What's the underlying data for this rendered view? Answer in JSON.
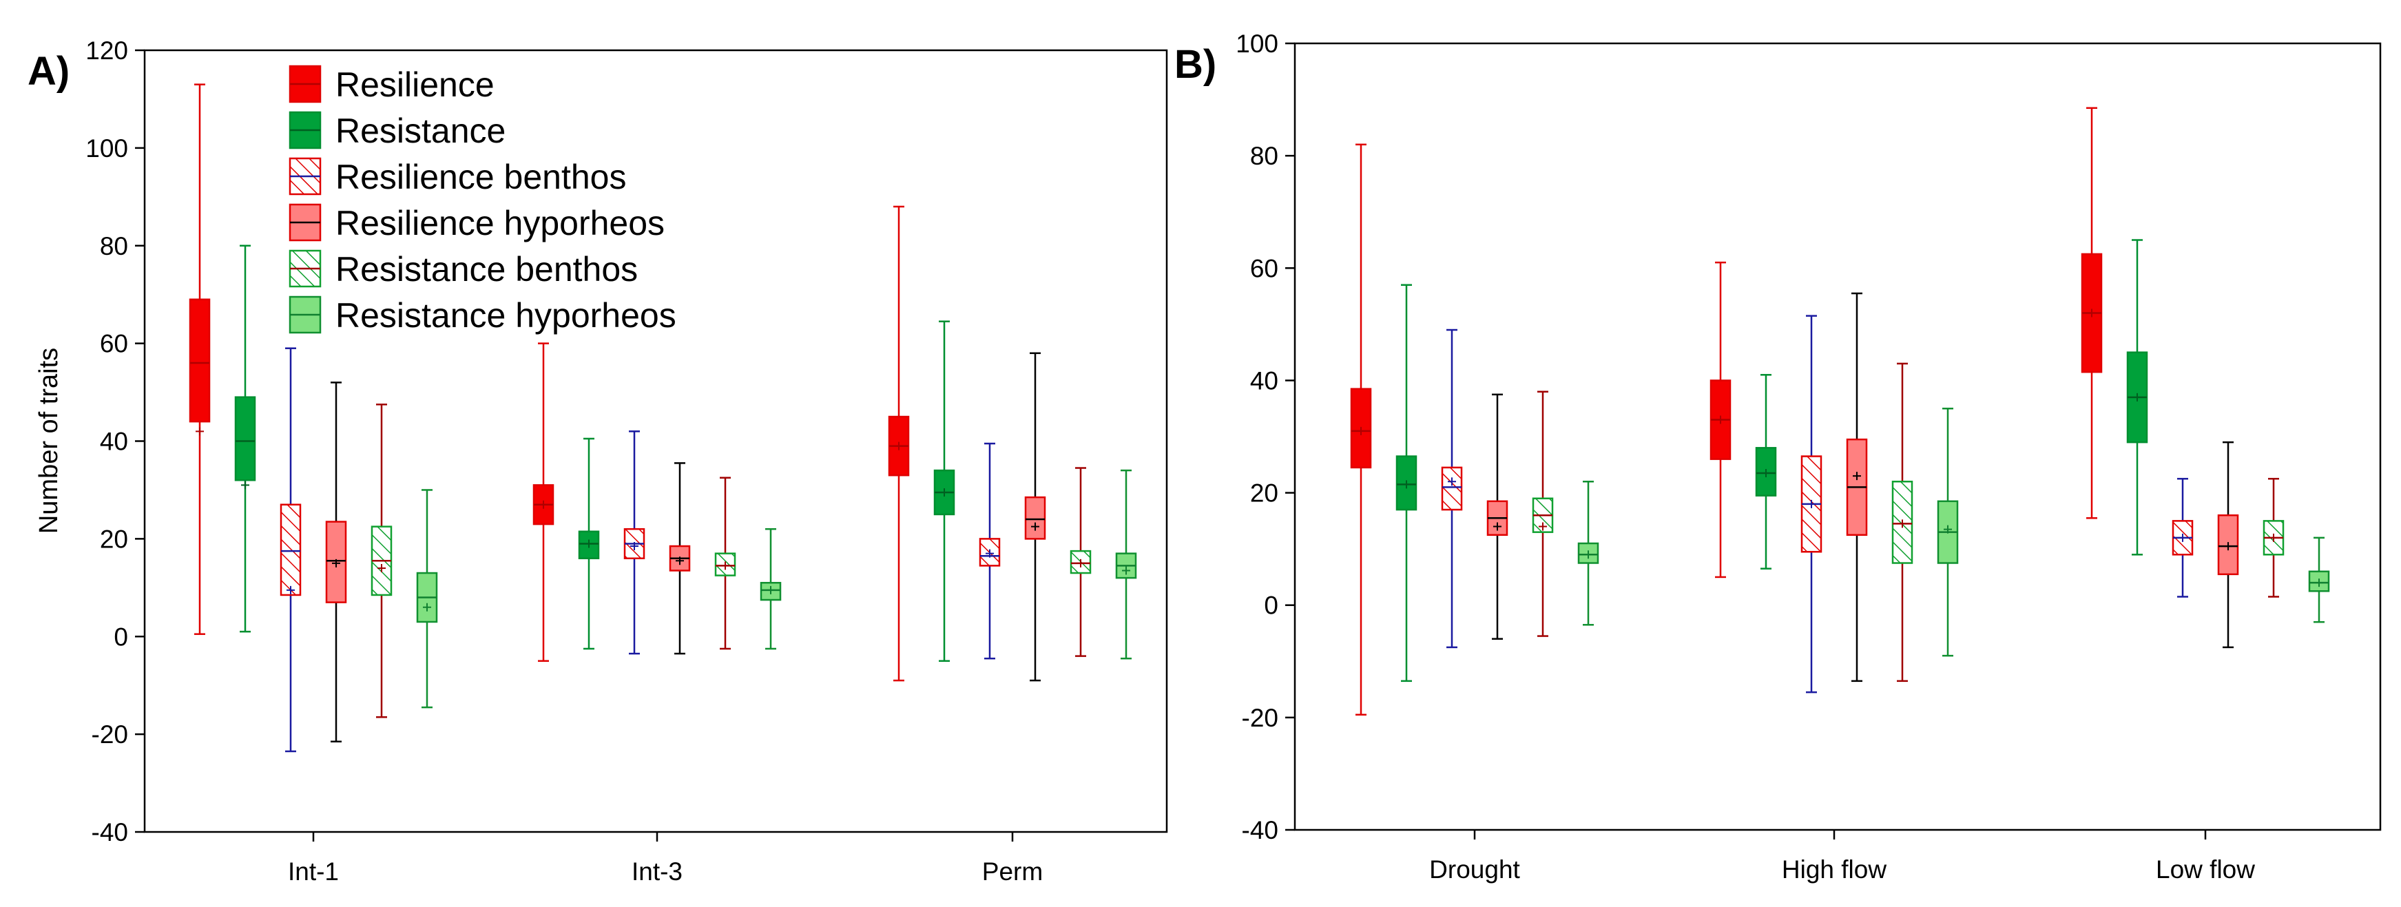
{
  "series_styles": {
    "Resilience": {
      "fill": "#f40000",
      "stroke": "#e00000",
      "whisker": "#e00000",
      "pattern": "solid",
      "median": "#b00000"
    },
    "Resistance": {
      "fill": "#00a13a",
      "stroke": "#008f30",
      "whisker": "#008f30",
      "pattern": "solid",
      "median": "#006020"
    },
    "Resilience benthos": {
      "fill": "#ffffff",
      "stroke": "#e00000",
      "whisker": "#1a1aa0",
      "pattern": "hatch-red",
      "median": "#1a1aa0"
    },
    "Resilience hyporheos": {
      "fill": "#ff8080",
      "stroke": "#e00000",
      "whisker": "#000000",
      "pattern": "solid",
      "median": "#000000"
    },
    "Resistance benthos": {
      "fill": "#ffffff",
      "stroke": "#10a030",
      "whisker": "#a00000",
      "pattern": "hatch-green",
      "median": "#a00000"
    },
    "Resistance hyporheos": {
      "fill": "#80e080",
      "stroke": "#109030",
      "whisker": "#109030",
      "pattern": "solid",
      "median": "#108030"
    }
  },
  "chart_data": [
    {
      "panel": "A)",
      "type": "boxplot",
      "ylabel": "Number of traits",
      "xlabel": "",
      "ylim": [
        -40,
        120
      ],
      "yticks": [
        -40,
        -20,
        0,
        20,
        40,
        60,
        80,
        100,
        120
      ],
      "legend": {
        "placement": "top-left",
        "entries": [
          "Resilience",
          "Resistance",
          "Resilience benthos",
          "Resilience hyporheos",
          "Resistance benthos",
          "Resistance hyporheos"
        ]
      },
      "categories": [
        "Int-1",
        "Int-3",
        "Perm"
      ],
      "series": [
        {
          "name": "Resilience",
          "boxes": [
            {
              "whisker_low": 0.5,
              "q1": 44,
              "median": 56,
              "q3": 69,
              "whisker_high": 113,
              "mean": 42
            },
            {
              "whisker_low": -5,
              "q1": 23,
              "median": 27,
              "q3": 31,
              "whisker_high": 60,
              "mean": 27
            },
            {
              "whisker_low": -9,
              "q1": 33,
              "median": 39,
              "q3": 45,
              "whisker_high": 88,
              "mean": 39
            }
          ]
        },
        {
          "name": "Resistance",
          "boxes": [
            {
              "whisker_low": 1,
              "q1": 32,
              "median": 40,
              "q3": 49,
              "whisker_high": 80,
              "mean": 31
            },
            {
              "whisker_low": -2.5,
              "q1": 16,
              "median": 19,
              "q3": 21.5,
              "whisker_high": 40.5,
              "mean": 19
            },
            {
              "whisker_low": -5,
              "q1": 25,
              "median": 29.5,
              "q3": 34,
              "whisker_high": 64.5,
              "mean": 29.5
            }
          ]
        },
        {
          "name": "Resilience benthos",
          "boxes": [
            {
              "whisker_low": -23.5,
              "q1": 8.5,
              "median": 17.5,
              "q3": 27,
              "whisker_high": 59,
              "mean": 9.5
            },
            {
              "whisker_low": -3.5,
              "q1": 16,
              "median": 19,
              "q3": 22,
              "whisker_high": 42,
              "mean": 18.5
            },
            {
              "whisker_low": -4.5,
              "q1": 14.5,
              "median": 16.5,
              "q3": 20,
              "whisker_high": 39.5,
              "mean": 17
            }
          ]
        },
        {
          "name": "Resilience hyporheos",
          "boxes": [
            {
              "whisker_low": -21.5,
              "q1": 7,
              "median": 15.5,
              "q3": 23.5,
              "whisker_high": 52,
              "mean": 15
            },
            {
              "whisker_low": -3.5,
              "q1": 13.5,
              "median": 16,
              "q3": 18.5,
              "whisker_high": 35.5,
              "mean": 15.5
            },
            {
              "whisker_low": -9,
              "q1": 20,
              "median": 24,
              "q3": 28.5,
              "whisker_high": 58,
              "mean": 22.5
            }
          ]
        },
        {
          "name": "Resistance benthos",
          "boxes": [
            {
              "whisker_low": -16.5,
              "q1": 8.5,
              "median": 15.5,
              "q3": 22.5,
              "whisker_high": 47.5,
              "mean": 14
            },
            {
              "whisker_low": -2.5,
              "q1": 12.5,
              "median": 14.5,
              "q3": 17,
              "whisker_high": 32.5,
              "mean": 14.5
            },
            {
              "whisker_low": -4,
              "q1": 13,
              "median": 15,
              "q3": 17.5,
              "whisker_high": 34.5,
              "mean": 15
            }
          ]
        },
        {
          "name": "Resistance hyporheos",
          "boxes": [
            {
              "whisker_low": -14.5,
              "q1": 3,
              "median": 8,
              "q3": 13,
              "whisker_high": 30,
              "mean": 6
            },
            {
              "whisker_low": -2.5,
              "q1": 7.5,
              "median": 9.5,
              "q3": 11,
              "whisker_high": 22,
              "mean": 9.5
            },
            {
              "whisker_low": -4.5,
              "q1": 12,
              "median": 14.5,
              "q3": 17,
              "whisker_high": 34,
              "mean": 13.5
            }
          ]
        }
      ]
    },
    {
      "panel": "B)",
      "type": "boxplot",
      "ylabel": "",
      "xlabel": "",
      "ylim": [
        -40,
        100
      ],
      "yticks": [
        -40,
        -20,
        0,
        20,
        40,
        60,
        80,
        100
      ],
      "categories": [
        "Drought",
        "High flow",
        "Low flow"
      ],
      "series": [
        {
          "name": "Resilience",
          "boxes": [
            {
              "whisker_low": -19.5,
              "q1": 24.5,
              "median": 31,
              "q3": 38.5,
              "whisker_high": 82,
              "mean": 31
            },
            {
              "whisker_low": 5,
              "q1": 26,
              "median": 33,
              "q3": 40,
              "whisker_high": 61,
              "mean": 33
            },
            {
              "whisker_low": 15.5,
              "q1": 41.5,
              "median": 52,
              "q3": 62.5,
              "whisker_high": 88.5,
              "mean": 52
            }
          ]
        },
        {
          "name": "Resistance",
          "boxes": [
            {
              "whisker_low": -13.5,
              "q1": 17,
              "median": 21.5,
              "q3": 26.5,
              "whisker_high": 57,
              "mean": 21.5
            },
            {
              "whisker_low": 6.5,
              "q1": 19.5,
              "median": 23.5,
              "q3": 28,
              "whisker_high": 41,
              "mean": 23.5
            },
            {
              "whisker_low": 9,
              "q1": 29,
              "median": 37,
              "q3": 45,
              "whisker_high": 65,
              "mean": 37
            }
          ]
        },
        {
          "name": "Resilience benthos",
          "boxes": [
            {
              "whisker_low": -7.5,
              "q1": 17,
              "median": 21,
              "q3": 24.5,
              "whisker_high": 49,
              "mean": 22
            },
            {
              "whisker_low": -15.5,
              "q1": 9.5,
              "median": 18,
              "q3": 26.5,
              "whisker_high": 51.5,
              "mean": 18
            },
            {
              "whisker_low": 1.5,
              "q1": 9,
              "median": 12,
              "q3": 15,
              "whisker_high": 22.5,
              "mean": 12
            }
          ]
        },
        {
          "name": "Resilience hyporheos",
          "boxes": [
            {
              "whisker_low": -6,
              "q1": 12.5,
              "median": 15.5,
              "q3": 18.5,
              "whisker_high": 37.5,
              "mean": 14
            },
            {
              "whisker_low": -13.5,
              "q1": 12.5,
              "median": 21,
              "q3": 29.5,
              "whisker_high": 55.5,
              "mean": 23
            },
            {
              "whisker_low": -7.5,
              "q1": 5.5,
              "median": 10.5,
              "q3": 16,
              "whisker_high": 29,
              "mean": 10.5
            }
          ]
        },
        {
          "name": "Resistance benthos",
          "boxes": [
            {
              "whisker_low": -5.5,
              "q1": 13,
              "median": 16,
              "q3": 19,
              "whisker_high": 38,
              "mean": 14
            },
            {
              "whisker_low": -13.5,
              "q1": 7.5,
              "median": 14.5,
              "q3": 22,
              "whisker_high": 43,
              "mean": 14.5
            },
            {
              "whisker_low": 1.5,
              "q1": 9,
              "median": 12,
              "q3": 15,
              "whisker_high": 22.5,
              "mean": 12
            }
          ]
        },
        {
          "name": "Resistance hyporheos",
          "boxes": [
            {
              "whisker_low": -3.5,
              "q1": 7.5,
              "median": 9,
              "q3": 11,
              "whisker_high": 22,
              "mean": 9
            },
            {
              "whisker_low": -9,
              "q1": 7.5,
              "median": 13,
              "q3": 18.5,
              "whisker_high": 35,
              "mean": 13.5
            },
            {
              "whisker_low": -3,
              "q1": 2.5,
              "median": 4,
              "q3": 6,
              "whisker_high": 12,
              "mean": 4
            }
          ]
        }
      ]
    }
  ]
}
